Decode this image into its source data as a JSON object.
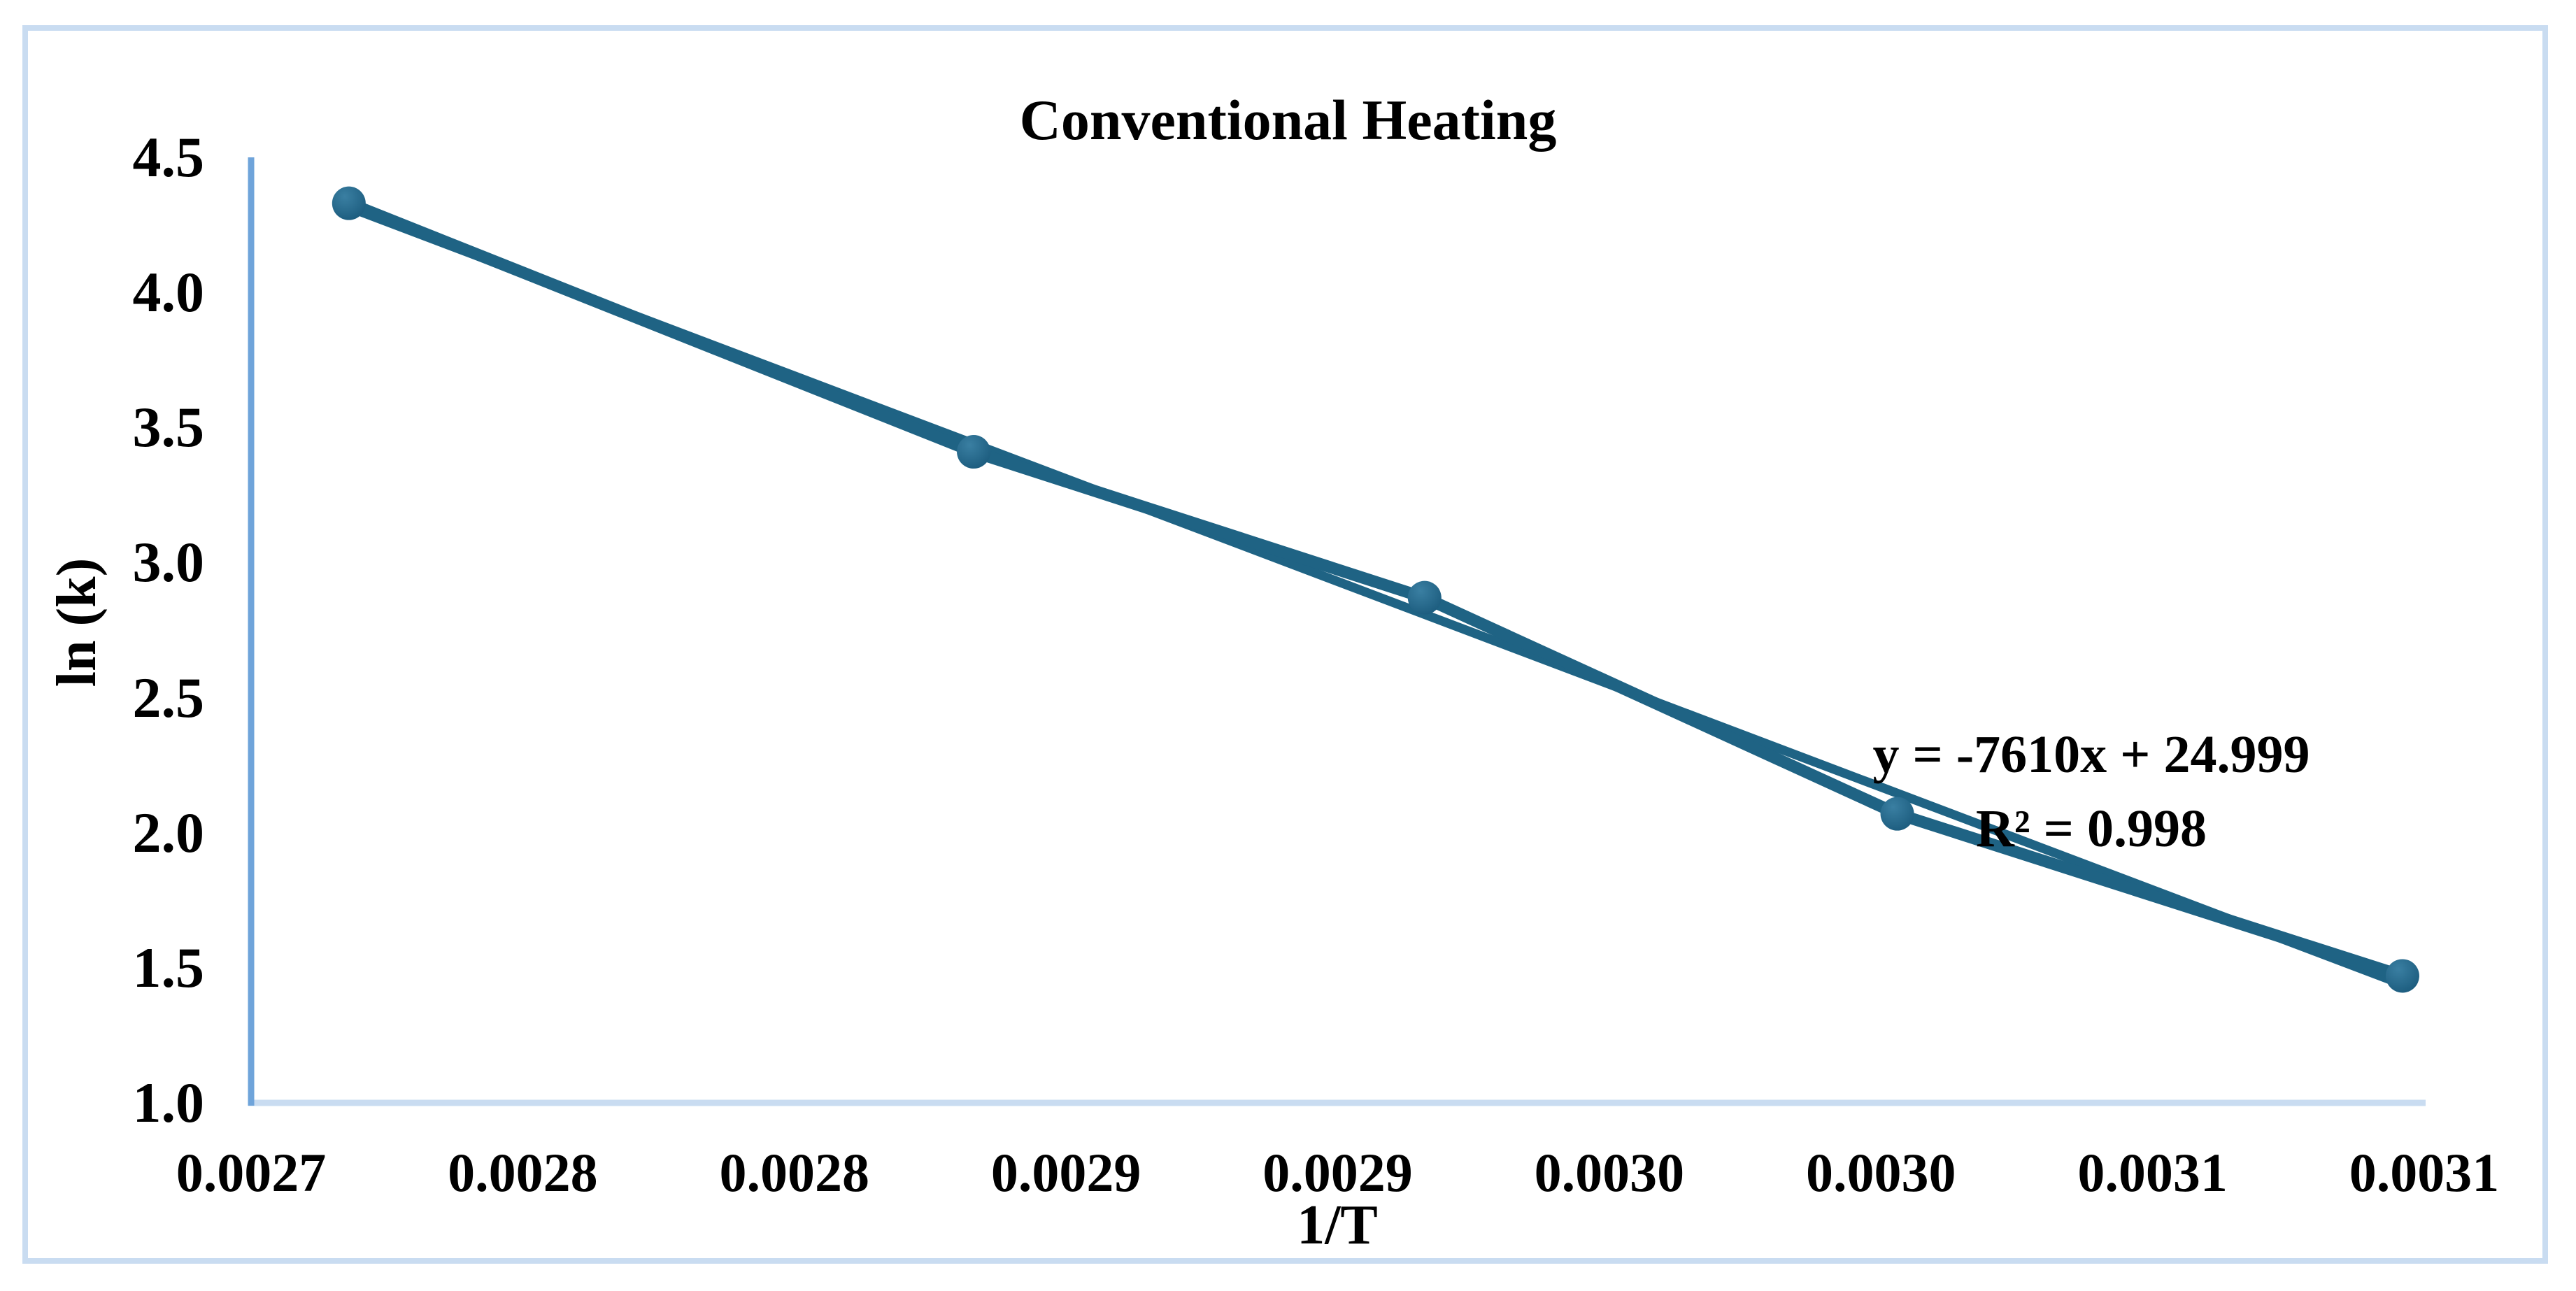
{
  "chart_data": {
    "type": "scatter",
    "title": "Conventional Heating",
    "xlabel": "1/T",
    "ylabel": "ln (k)",
    "x": [
      0.002718,
      0.002833,
      0.002916,
      0.003003,
      0.003096
    ],
    "y": [
      4.33,
      3.41,
      2.87,
      2.07,
      1.47
    ],
    "trendline": {
      "slope": -7610,
      "intercept": 24.999,
      "equation_label": "y = -7610x + 24.999",
      "r2_label": "R² = 0.998"
    },
    "xlim": [
      0.0027,
      0.0031
    ],
    "ylim": [
      1.0,
      4.5
    ],
    "x_tick_step": 5e-05,
    "y_tick_step": 0.5,
    "x_tick_labels": [
      "0.0027",
      "0.0028",
      "0.0028",
      "0.0029",
      "0.0029",
      "0.0030",
      "0.0030",
      "0.0031",
      "0.0031"
    ],
    "y_tick_labels": [
      "4.5",
      "4.0",
      "3.5",
      "3.0",
      "2.5",
      "2.0",
      "1.5",
      "1.0"
    ],
    "grid": "off",
    "legend": "none",
    "colors": {
      "series": "#1F6384",
      "marker_light": "#3A7FA2",
      "marker_dark": "#1C5C7E",
      "y_axis_line": "#6FA4DA",
      "x_axis_line": "#C9DCF1",
      "frame_border": "#C9DCF1",
      "text": "#000000",
      "background": "#FFFFFF"
    }
  }
}
